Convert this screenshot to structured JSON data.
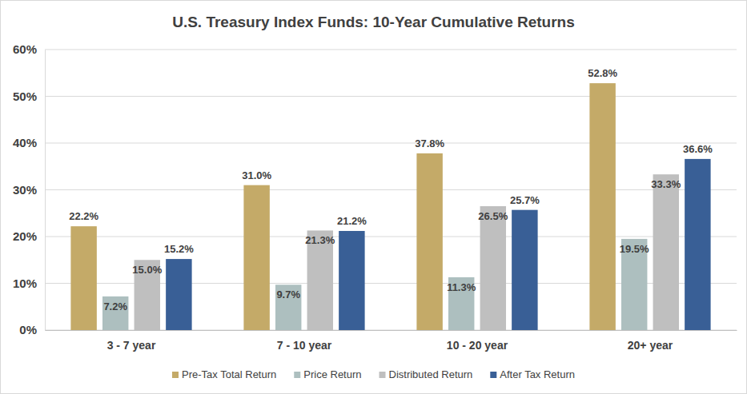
{
  "chart_data": {
    "type": "bar",
    "title": "U.S. Treasury Index Funds: 10-Year Cumulative Returns",
    "categories": [
      "3 - 7 year",
      "7 - 10 year",
      "10 - 20 year",
      "20+ year"
    ],
    "series": [
      {
        "name": "Pre-Tax Total Return",
        "color": "#c4aa68",
        "values": [
          22.2,
          31.0,
          37.8,
          52.8
        ],
        "value_labels": [
          "22.2%",
          "31.0%",
          "37.8%",
          "52.8%"
        ]
      },
      {
        "name": "Price  Return",
        "color": "#adbfbf",
        "values": [
          7.2,
          9.7,
          11.3,
          19.5
        ],
        "value_labels": [
          "7.2%",
          "9.7%",
          "11.3%",
          "19.5%"
        ]
      },
      {
        "name": "Distributed Return",
        "color": "#bfbfbf",
        "values": [
          15.0,
          21.3,
          26.5,
          33.3
        ],
        "value_labels": [
          "15.0%",
          "21.3%",
          "26.5%",
          "33.3%"
        ]
      },
      {
        "name": "After Tax Return",
        "color": "#395f96",
        "values": [
          15.2,
          21.2,
          25.7,
          36.6
        ],
        "value_labels": [
          "15.2%",
          "21.2%",
          "25.7%",
          "36.6%"
        ]
      }
    ],
    "ylim": [
      0,
      60
    ],
    "yticks": [
      {
        "value": 0,
        "label": "0%"
      },
      {
        "value": 10,
        "label": "10%"
      },
      {
        "value": 20,
        "label": "20%"
      },
      {
        "value": 30,
        "label": "30%"
      },
      {
        "value": 40,
        "label": "40%"
      },
      {
        "value": 50,
        "label": "50%"
      },
      {
        "value": 60,
        "label": "60%"
      }
    ],
    "grid": true,
    "legend": "bottom",
    "data_labels": true
  }
}
